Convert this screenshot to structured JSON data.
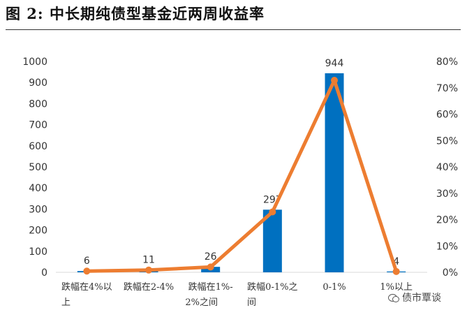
{
  "figure": {
    "title": "图 2:  中长期纯债型基金近两周收益率"
  },
  "watermark": {
    "text": "债市覃谈",
    "icon": "wechat-icon"
  },
  "colors": {
    "bar": "#0070c0",
    "line": "#ed7d31",
    "axis_text": "#333333"
  },
  "chart_data": {
    "type": "bar",
    "categories": [
      [
        "跌幅在4%以",
        "上"
      ],
      [
        "跌幅在2-4%"
      ],
      [
        "跌幅在1%-",
        "2%之间"
      ],
      [
        "跌幅0-1%之",
        "间"
      ],
      [
        "0-1%"
      ],
      [
        "1%以上"
      ]
    ],
    "series": [
      {
        "type": "bar",
        "axis": "left",
        "values": [
          6,
          11,
          26,
          297,
          944,
          4
        ],
        "data_labels": [
          "6",
          "11",
          "26",
          "297",
          "944",
          "4"
        ]
      },
      {
        "type": "line",
        "axis": "right",
        "values": [
          0.0046,
          0.0085,
          0.0201,
          0.2292,
          0.7284,
          0.0031
        ]
      }
    ],
    "y_left": {
      "min": 0,
      "max": 1000,
      "ticks": [
        "0",
        "100",
        "200",
        "300",
        "400",
        "500",
        "600",
        "700",
        "800",
        "900",
        "1000"
      ]
    },
    "y_right": {
      "min": 0,
      "max": 0.8,
      "ticks": [
        "0%",
        "10%",
        "20%",
        "30%",
        "40%",
        "50%",
        "60%",
        "70%",
        "80%"
      ]
    },
    "grid": false,
    "legend": "none"
  }
}
